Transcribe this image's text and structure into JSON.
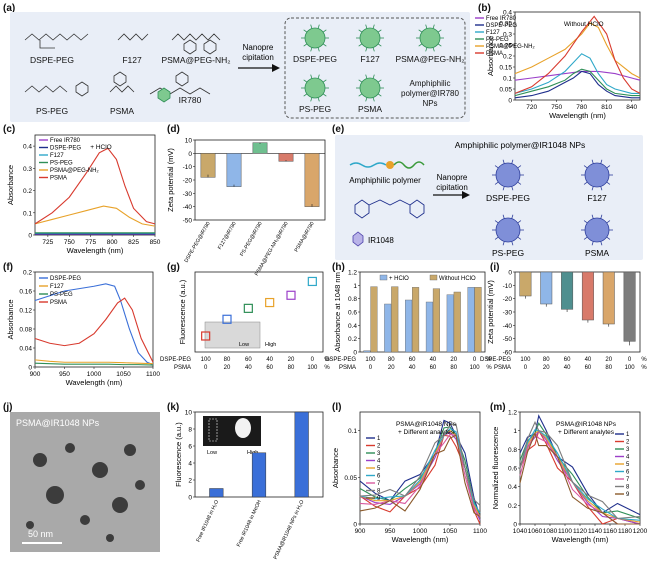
{
  "panel_labels": [
    "(a)",
    "(b)",
    "(c)",
    "(d)",
    "(e)",
    "(f)",
    "(g)",
    "(h)",
    "(i)",
    "(j)",
    "(k)",
    "(l)",
    "(m)"
  ],
  "panel_a": {
    "polymers": [
      "DSPE-PEG",
      "F127",
      "PSMA@PEG-NH₂",
      "PS-PEG",
      "PSMA"
    ],
    "dye": "IR780",
    "arrow_label": [
      "Nanopre",
      "cipitation"
    ],
    "nps": [
      "DSPE-PEG",
      "F127",
      "PSMA@PEG-NH₂",
      "PS-PEG",
      "PSMA"
    ],
    "np_caption": [
      "Amphiphilic",
      "polymer@IR780",
      "NPs"
    ]
  },
  "panel_e": {
    "title": "Amphiphilic polymer@IR1048 NPs",
    "polymer_label": "Amphiphilic polymer",
    "dye_label": "IR1048",
    "arrow_label": [
      "Nanopre",
      "cipitation"
    ],
    "nps": [
      "DSPE-PEG",
      "F127",
      "PS-PEG",
      "PSMA"
    ]
  },
  "panel_j": {
    "label": "PSMA@IR1048 NPs",
    "scale": "50 nm"
  },
  "colors": {
    "blue": "#3a6fd8",
    "red": "#d83a2e",
    "green": "#2f8f57",
    "orange": "#e8a22a",
    "purple": "#9b3fc9",
    "navy": "#1f2f8c",
    "gray": "#7d7d7d",
    "wheat": "#c9a86a",
    "lightblue": "#8fb6e8"
  },
  "chart_data": [
    {
      "id": "b",
      "type": "line",
      "note": "Without HClO",
      "xlabel": "Wavelength (nm)",
      "ylabel": "Absorbance",
      "xlim": [
        700,
        850
      ],
      "ylim": [
        0,
        0.4
      ],
      "xticks": [
        720,
        750,
        780,
        810,
        840
      ],
      "yticks": [
        0.0,
        0.05,
        0.1,
        0.15,
        0.2,
        0.25,
        0.3,
        0.35,
        0.4
      ],
      "legend": [
        "Free IR780",
        "DSPE-PEG",
        "F127",
        "PS-PEG",
        "PSMA@PEG-NH₂",
        "PSMA"
      ],
      "series": [
        {
          "name": "Free IR780",
          "color": "#9b3fc9",
          "x": [
            700,
            720,
            740,
            760,
            780,
            800,
            820,
            840,
            850
          ],
          "y": [
            0.09,
            0.1,
            0.11,
            0.12,
            0.13,
            0.13,
            0.12,
            0.1,
            0.09
          ]
        },
        {
          "name": "DSPE-PEG",
          "color": "#1f2f8c",
          "x": [
            700,
            720,
            740,
            760,
            770,
            780,
            790,
            800,
            810,
            820,
            840,
            850
          ],
          "y": [
            0.01,
            0.02,
            0.04,
            0.08,
            0.1,
            0.13,
            0.12,
            0.07,
            0.04,
            0.02,
            0.01,
            0.01
          ]
        },
        {
          "name": "F127",
          "color": "#2fa8c9",
          "x": [
            700,
            720,
            740,
            760,
            770,
            780,
            790,
            800,
            810,
            820,
            840,
            850
          ],
          "y": [
            0.03,
            0.05,
            0.08,
            0.13,
            0.17,
            0.21,
            0.19,
            0.12,
            0.07,
            0.05,
            0.03,
            0.03
          ]
        },
        {
          "name": "PS-PEG",
          "color": "#2f8f57",
          "x": [
            700,
            720,
            740,
            760,
            770,
            780,
            790,
            800,
            810,
            820,
            840,
            850
          ],
          "y": [
            0.02,
            0.04,
            0.06,
            0.09,
            0.12,
            0.14,
            0.13,
            0.09,
            0.05,
            0.03,
            0.02,
            0.02
          ]
        },
        {
          "name": "PSMA@PEG-NH₂",
          "color": "#e8a22a",
          "x": [
            700,
            720,
            740,
            760,
            780,
            790,
            800,
            810,
            820,
            840,
            850
          ],
          "y": [
            0.12,
            0.15,
            0.19,
            0.23,
            0.3,
            0.35,
            0.33,
            0.25,
            0.18,
            0.12,
            0.1
          ]
        },
        {
          "name": "PSMA",
          "color": "#d83a2e",
          "x": [
            700,
            720,
            740,
            760,
            780,
            795,
            810,
            820,
            830,
            840,
            850
          ],
          "y": [
            0.03,
            0.06,
            0.12,
            0.2,
            0.31,
            0.38,
            0.3,
            0.18,
            0.1,
            0.05,
            0.03
          ]
        }
      ]
    },
    {
      "id": "c",
      "type": "line",
      "note": "+ HClO",
      "xlabel": "Wavelength (nm)",
      "ylabel": "Absorbance",
      "xlim": [
        710,
        850
      ],
      "ylim": [
        0,
        0.45
      ],
      "xticks": [
        725,
        750,
        775,
        800,
        825,
        850
      ],
      "yticks": [
        0.0,
        0.1,
        0.2,
        0.3,
        0.4
      ],
      "legend": [
        "Free IR780",
        "DSPE-PEG",
        "F127",
        "PS-PEG",
        "PSMA@PEG-NH₂",
        "PSMA"
      ],
      "series": [
        {
          "name": "Free IR780",
          "color": "#9b3fc9",
          "x": [
            710,
            850
          ],
          "y": [
            0.003,
            0.003
          ]
        },
        {
          "name": "DSPE-PEG",
          "color": "#1f2f8c",
          "x": [
            710,
            850
          ],
          "y": [
            0.005,
            0.005
          ]
        },
        {
          "name": "F127",
          "color": "#2fa8c9",
          "x": [
            710,
            850
          ],
          "y": [
            0.008,
            0.008
          ]
        },
        {
          "name": "PS-PEG",
          "color": "#2f8f57",
          "x": [
            710,
            850
          ],
          "y": [
            0.01,
            0.01
          ]
        },
        {
          "name": "PSMA@PEG-NH₂",
          "color": "#e8a22a",
          "x": [
            710,
            730,
            750,
            770,
            790,
            805,
            820,
            835,
            850
          ],
          "y": [
            0.05,
            0.07,
            0.09,
            0.11,
            0.13,
            0.12,
            0.08,
            0.05,
            0.04
          ]
        },
        {
          "name": "PSMA",
          "color": "#d83a2e",
          "x": [
            710,
            730,
            750,
            770,
            785,
            795,
            805,
            815,
            825,
            840,
            850
          ],
          "y": [
            0.05,
            0.1,
            0.17,
            0.28,
            0.37,
            0.39,
            0.34,
            0.22,
            0.12,
            0.06,
            0.05
          ]
        }
      ]
    },
    {
      "id": "d",
      "type": "bar",
      "ylabel": "Zeta potential (mV)",
      "ylim": [
        -50,
        10
      ],
      "yticks": [
        -50,
        -40,
        -30,
        -20,
        -10,
        0,
        10
      ],
      "categories": [
        "DSPE-PEG@IR780",
        "F127@IR780",
        "PS-PEG@IR780",
        "PSMA@PEG-NH₂@IR780",
        "PSMA@IR780"
      ],
      "values": [
        -18,
        -25,
        8,
        -6,
        -40
      ],
      "errors": [
        2,
        1.5,
        1,
        1,
        2
      ],
      "colors": [
        "#c9a86a",
        "#8fb6e8",
        "#6fbf8f",
        "#d87a6a",
        "#d9a66a"
      ]
    },
    {
      "id": "f",
      "type": "line",
      "xlabel": "Wavelength (nm)",
      "ylabel": "Absorbance",
      "xlim": [
        900,
        1100
      ],
      "ylim": [
        0,
        0.2
      ],
      "xticks": [
        900,
        950,
        1000,
        1050,
        1100
      ],
      "yticks": [
        0.0,
        0.04,
        0.08,
        0.12,
        0.16,
        0.2
      ],
      "legend": [
        "DSPE-PEG",
        "F127",
        "PS-PEG",
        "PSMA"
      ],
      "series": [
        {
          "name": "DSPE-PEG",
          "color": "#3a6fd8",
          "x": [
            900,
            925,
            950,
            975,
            1000,
            1020,
            1035,
            1045,
            1060,
            1075,
            1090,
            1100
          ],
          "y": [
            0.14,
            0.15,
            0.16,
            0.165,
            0.17,
            0.175,
            0.17,
            0.14,
            0.08,
            0.03,
            0.01,
            0.005
          ]
        },
        {
          "name": "F127",
          "color": "#e8a22a",
          "x": [
            900,
            925,
            950,
            975,
            1000,
            1025,
            1050,
            1075,
            1100
          ],
          "y": [
            0.015,
            0.012,
            0.01,
            0.01,
            0.01,
            0.01,
            0.009,
            0.008,
            0.007
          ]
        },
        {
          "name": "PS-PEG",
          "color": "#2f8f57",
          "x": [
            900,
            925,
            950,
            975,
            1000,
            1025,
            1050,
            1075,
            1100
          ],
          "y": [
            0.008,
            0.007,
            0.006,
            0.006,
            0.006,
            0.006,
            0.005,
            0.005,
            0.004
          ]
        },
        {
          "name": "PSMA",
          "color": "#d83a2e",
          "x": [
            900,
            925,
            950,
            975,
            1000,
            1020,
            1040,
            1052,
            1065,
            1080,
            1100
          ],
          "y": [
            0.06,
            0.05,
            0.045,
            0.05,
            0.07,
            0.1,
            0.135,
            0.145,
            0.12,
            0.06,
            0.01
          ]
        }
      ]
    },
    {
      "id": "g",
      "type": "scatter",
      "ylabel": "Fluorescence (a.u.)",
      "ylim": [
        0,
        1.1
      ],
      "row_labels": [
        "DSPE-PEG",
        "PSMA"
      ],
      "rows": [
        [
          "100",
          "80",
          "60",
          "40",
          "20",
          "0",
          "%"
        ],
        [
          "0",
          "20",
          "40",
          "60",
          "80",
          "100",
          "%"
        ]
      ],
      "values": [
        0.22,
        0.45,
        0.6,
        0.68,
        0.78,
        0.97
      ],
      "colors": [
        "#d83a2e",
        "#3a6fd8",
        "#2f8f57",
        "#e8a22a",
        "#9b3fc9",
        "#2fa8c9"
      ],
      "inset": [
        "Low",
        "High"
      ]
    },
    {
      "id": "h",
      "type": "bar",
      "ylabel": "Absorbance at 1048 nm",
      "ylim": [
        0,
        1.2
      ],
      "yticks": [
        0.0,
        0.2,
        0.4,
        0.6,
        0.8,
        1.0,
        1.2
      ],
      "legend": [
        "+ HClO",
        "Without HClO"
      ],
      "row_labels": [
        "DSPE-PEG",
        "PSMA"
      ],
      "rows": [
        [
          "100",
          "80",
          "60",
          "40",
          "20",
          "0",
          "%"
        ],
        [
          "0",
          "20",
          "40",
          "60",
          "80",
          "100",
          "%"
        ]
      ],
      "series": [
        {
          "name": "+ HClO",
          "color": "#8fb6e8",
          "values": [
            0.02,
            0.72,
            0.78,
            0.75,
            0.86,
            0.97
          ]
        },
        {
          "name": "Without HClO",
          "color": "#c9a86a",
          "values": [
            0.98,
            0.98,
            0.97,
            0.95,
            0.9,
            0.97
          ]
        }
      ]
    },
    {
      "id": "i",
      "type": "bar",
      "ylabel": "Zeta potential (mV)",
      "ylim": [
        -60,
        0
      ],
      "yticks": [
        -60,
        -50,
        -40,
        -30,
        -20,
        -10,
        0
      ],
      "row_labels": [
        "DSPE-PEG",
        "PSMA"
      ],
      "rows": [
        [
          "100",
          "80",
          "60",
          "40",
          "20",
          "0",
          "%"
        ],
        [
          "0",
          "20",
          "40",
          "60",
          "80",
          "100",
          "%"
        ]
      ],
      "values": [
        -18,
        -24,
        -28,
        -36,
        -39,
        -52
      ],
      "errors": [
        2,
        2,
        2,
        2,
        2,
        3
      ],
      "colors": [
        "#c9a86a",
        "#8fb6e8",
        "#4f8f8f",
        "#d87a6a",
        "#d9a66a",
        "#7d7d7d"
      ]
    },
    {
      "id": "k",
      "type": "bar",
      "ylabel": "Fluorescence (a.u.)",
      "ylim": [
        0,
        10
      ],
      "yticks": [
        0,
        2,
        4,
        6,
        8,
        10
      ],
      "categories": [
        "Free IR1048 in H₂O",
        "Free IR1048 in MeOH",
        "PSMA@IR1048 NPs in H₂O"
      ],
      "values": [
        1,
        5.2,
        10
      ],
      "colors": [
        "#3a6fd8",
        "#3a6fd8",
        "#3a6fd8"
      ],
      "inset": [
        "Low",
        "High"
      ]
    },
    {
      "id": "l",
      "type": "line",
      "note": [
        "PSMA@IR1048 NPs",
        "+ Different analytes"
      ],
      "xlabel": "Wavelength (nm)",
      "ylabel": "Absorbance",
      "xlim": [
        900,
        1100
      ],
      "ylim": [
        0,
        0.12
      ],
      "xticks": [
        900,
        950,
        1000,
        1050,
        1100
      ],
      "yticks": [
        0.0,
        0.05,
        0.1
      ],
      "legend": [
        "1",
        "2",
        "3",
        "4",
        "5",
        "6",
        "7",
        "8",
        "9"
      ],
      "series_colors": [
        "#1f2f8c",
        "#d83a2e",
        "#2f8f57",
        "#9b3fc9",
        "#e8a22a",
        "#2fa8c9",
        "#d85aa0",
        "#7d7d7d",
        "#8b5a2b"
      ],
      "base": {
        "x": [
          900,
          925,
          950,
          975,
          1000,
          1025,
          1040,
          1050,
          1060,
          1075,
          1090,
          1100
        ],
        "y": [
          0.03,
          0.025,
          0.025,
          0.03,
          0.045,
          0.075,
          0.095,
          0.1,
          0.095,
          0.06,
          0.02,
          0.008
        ]
      }
    },
    {
      "id": "m",
      "type": "line",
      "note": [
        "PSMA@IR1048 NPs",
        "+ Different analytes"
      ],
      "xlabel": "Wavelength (nm)",
      "ylabel": "Normalized fluorescence",
      "xlim": [
        1040,
        1200
      ],
      "ylim": [
        0,
        1.2
      ],
      "xticks": [
        1040,
        1060,
        1080,
        1100,
        1120,
        1140,
        1160,
        1180,
        1200
      ],
      "yticks": [
        0.0,
        0.2,
        0.4,
        0.6,
        0.8,
        1.0,
        1.2
      ],
      "legend": [
        "1",
        "2",
        "3",
        "4",
        "5",
        "6",
        "7",
        "8",
        "9"
      ],
      "series_colors": [
        "#1f2f8c",
        "#d83a2e",
        "#2f8f57",
        "#9b3fc9",
        "#e8a22a",
        "#2fa8c9",
        "#d85aa0",
        "#7d7d7d",
        "#8b5a2b"
      ],
      "base": {
        "x": [
          1040,
          1050,
          1060,
          1065,
          1075,
          1090,
          1110,
          1130,
          1150,
          1170,
          1200
        ],
        "y": [
          0.6,
          0.85,
          0.97,
          1.0,
          0.92,
          0.72,
          0.45,
          0.25,
          0.12,
          0.06,
          0.02
        ]
      }
    }
  ]
}
